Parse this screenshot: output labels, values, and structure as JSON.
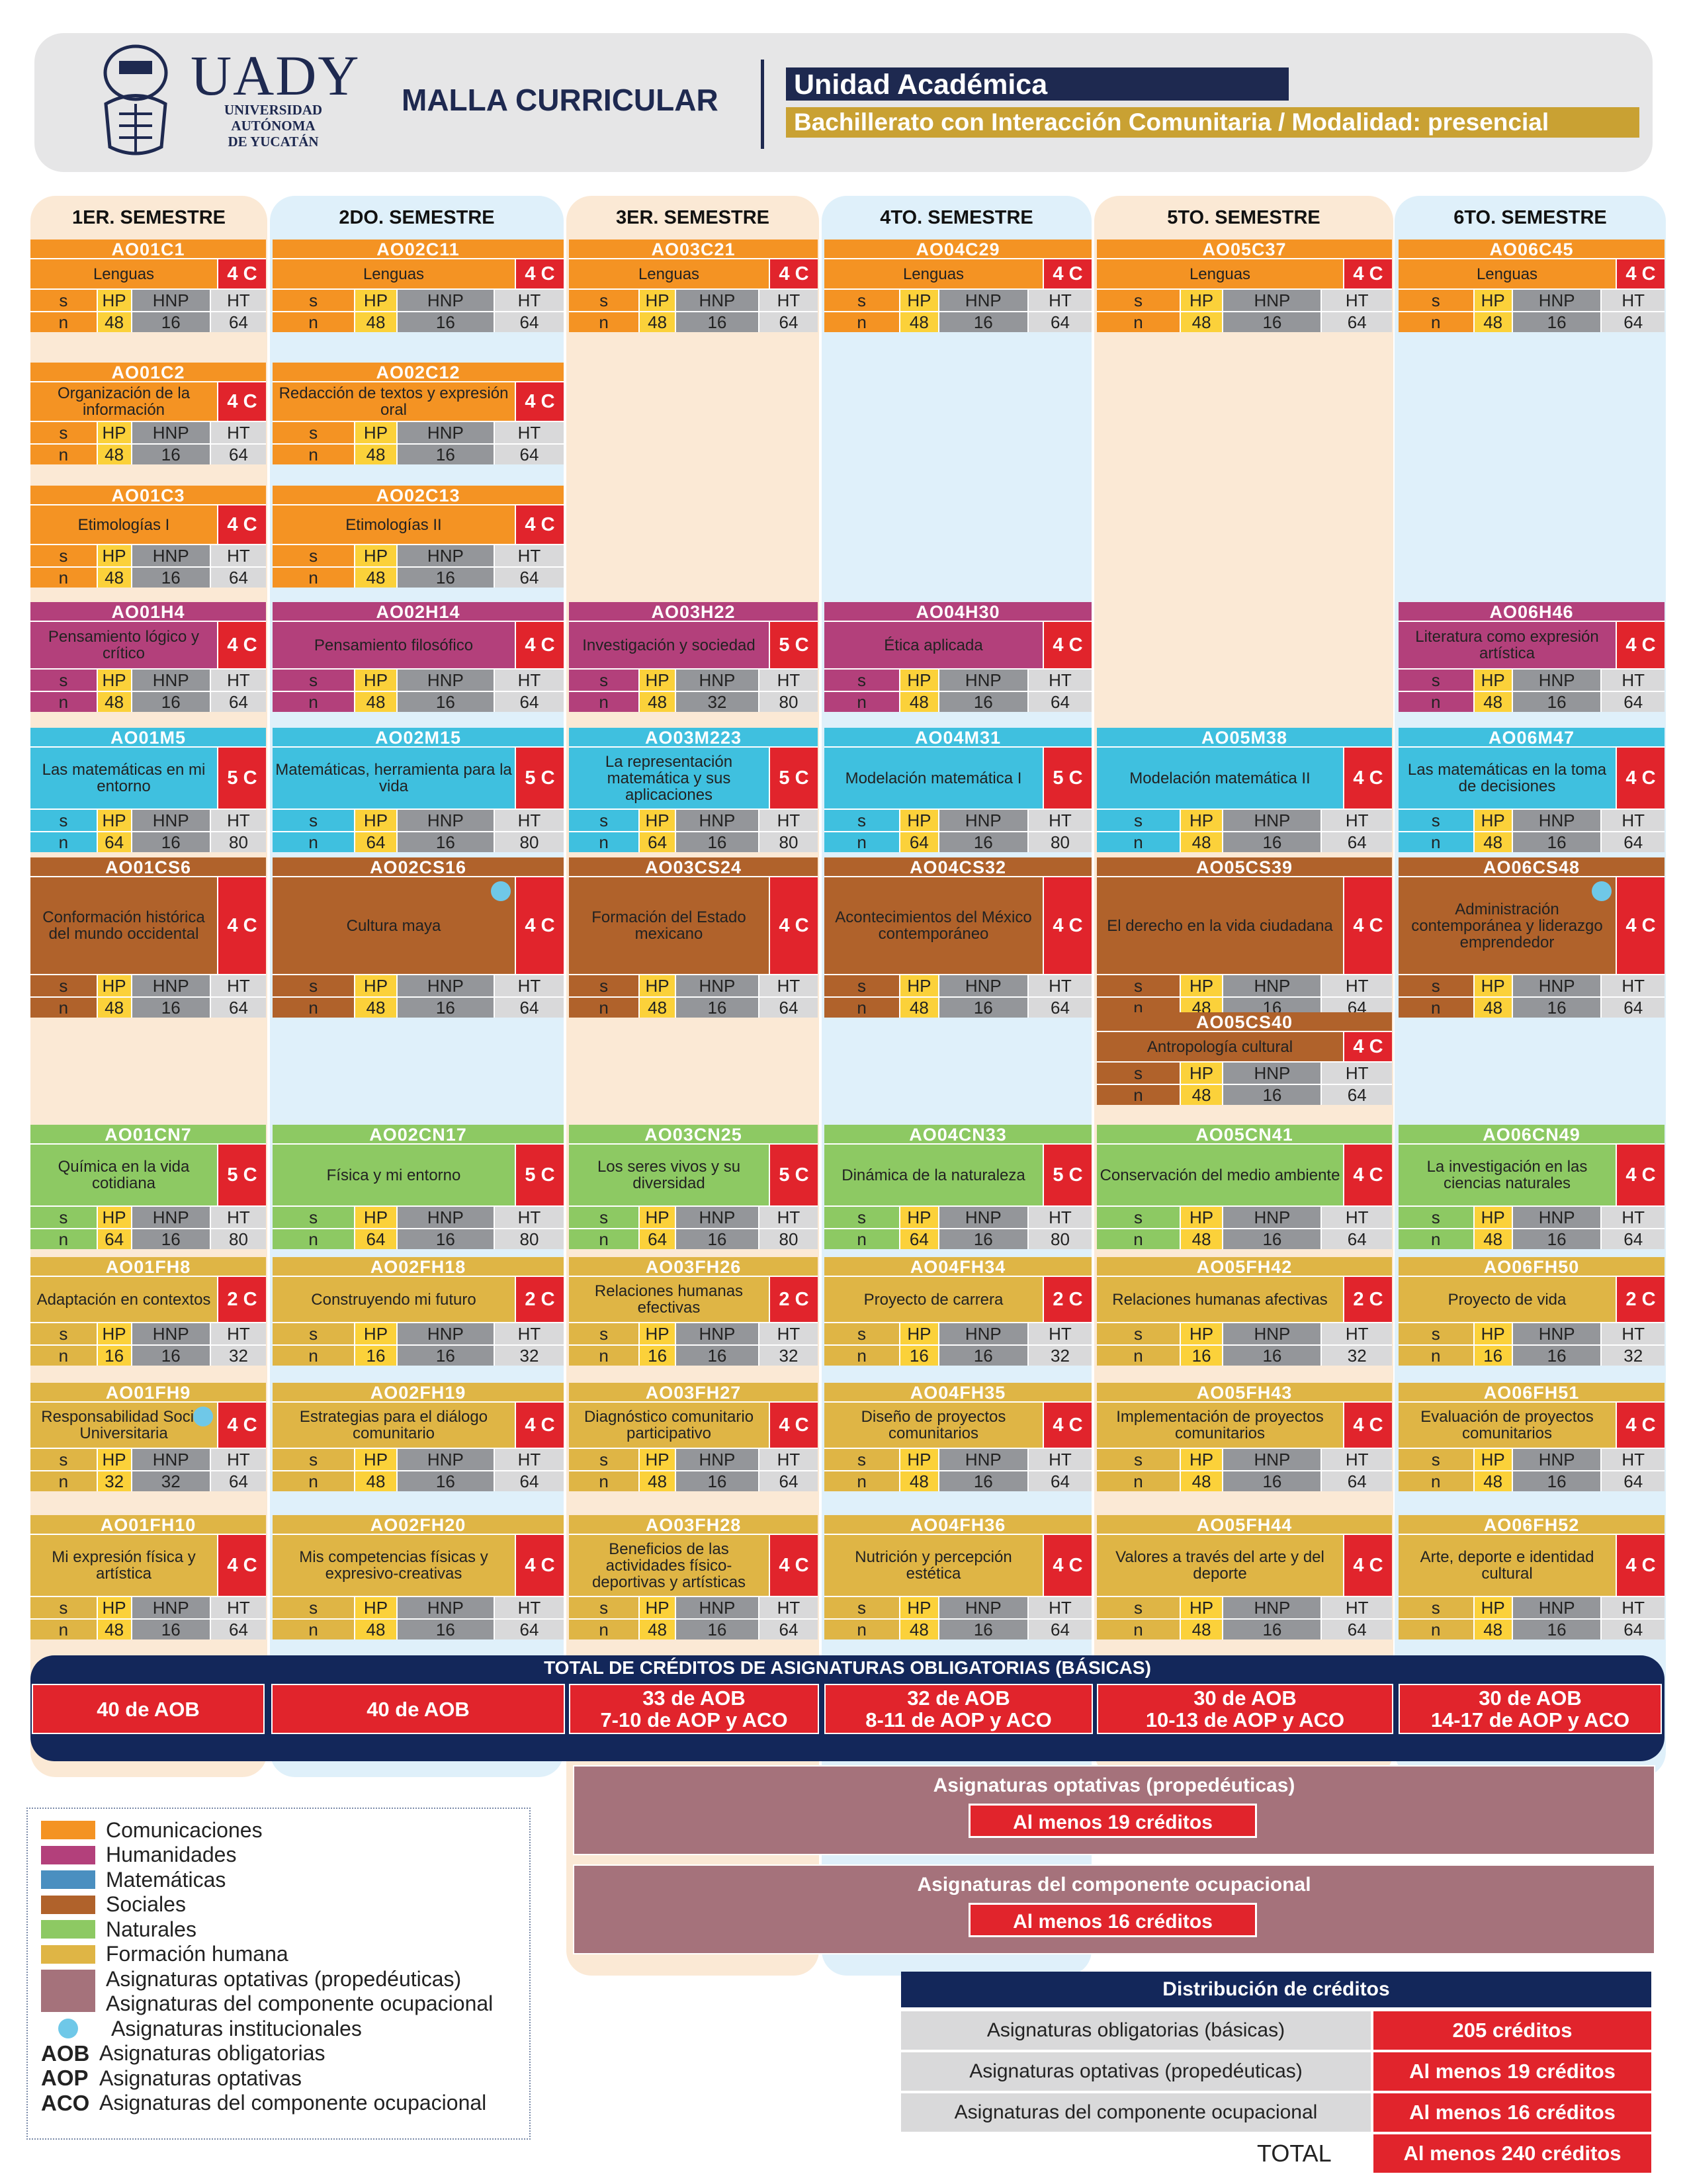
{
  "header": {
    "logo_text": "UADY",
    "logo_sub": [
      "UNIVERSIDAD",
      "AUTÓNOMA",
      "DE YUCATÁN"
    ],
    "title": "MALLA CURRICULAR",
    "unit": "Unidad Académica",
    "program": "Bachillerato con Interacción Comunitaria / Modalidad: presencial"
  },
  "colors": {
    "com": "#f49323",
    "hum": "#b3407b",
    "mat": "#3fc0df",
    "soc": "#b0622b",
    "nat": "#8dc963",
    "fh": "#dfb545",
    "opt": "#a5727b",
    "red": "#e1242c",
    "navy": "#13275a",
    "bg_peach": "#fbe9d5",
    "bg_blue": "#dff0fa"
  },
  "labels": {
    "s": "s",
    "n": "n",
    "hp": "HP",
    "hnp": "HNP",
    "ht": "HT"
  },
  "semesters": [
    "1ER. SEMESTRE",
    "2DO. SEMESTRE",
    "3ER. SEMESTRE",
    "4TO. SEMESTRE",
    "5TO. SEMESTRE",
    "6TO. SEMESTRE"
  ],
  "courses": [
    {
      "sem": 0,
      "row": 0,
      "area": "com",
      "code": "AO01C1",
      "name": "Lenguas",
      "cred": "4 C",
      "hp": "48",
      "hnp": "16",
      "ht": "64"
    },
    {
      "sem": 1,
      "row": 0,
      "area": "com",
      "code": "AO02C11",
      "name": "Lenguas",
      "cred": "4 C",
      "hp": "48",
      "hnp": "16",
      "ht": "64"
    },
    {
      "sem": 2,
      "row": 0,
      "area": "com",
      "code": "AO03C21",
      "name": "Lenguas",
      "cred": "4 C",
      "hp": "48",
      "hnp": "16",
      "ht": "64"
    },
    {
      "sem": 3,
      "row": 0,
      "area": "com",
      "code": "AO04C29",
      "name": "Lenguas",
      "cred": "4 C",
      "hp": "48",
      "hnp": "16",
      "ht": "64"
    },
    {
      "sem": 4,
      "row": 0,
      "area": "com",
      "code": "AO05C37",
      "name": "Lenguas",
      "cred": "4 C",
      "hp": "48",
      "hnp": "16",
      "ht": "64"
    },
    {
      "sem": 5,
      "row": 0,
      "area": "com",
      "code": "AO06C45",
      "name": "Lenguas",
      "cred": "4 C",
      "hp": "48",
      "hnp": "16",
      "ht": "64"
    },
    {
      "sem": 0,
      "row": 1,
      "area": "com",
      "code": "AO01C2",
      "name": "Organización de la información",
      "cred": "4 C",
      "hp": "48",
      "hnp": "16",
      "ht": "64"
    },
    {
      "sem": 1,
      "row": 1,
      "area": "com",
      "code": "AO02C12",
      "name": "Redacción de textos y expresión oral",
      "cred": "4 C",
      "hp": "48",
      "hnp": "16",
      "ht": "64"
    },
    {
      "sem": 0,
      "row": 2,
      "area": "com",
      "code": "AO01C3",
      "name": "Etimologías I",
      "cred": "4 C",
      "hp": "48",
      "hnp": "16",
      "ht": "64"
    },
    {
      "sem": 1,
      "row": 2,
      "area": "com",
      "code": "AO02C13",
      "name": "Etimologías II",
      "cred": "4 C",
      "hp": "48",
      "hnp": "16",
      "ht": "64"
    },
    {
      "sem": 0,
      "row": 3,
      "area": "hum",
      "code": "AO01H4",
      "name": "Pensamiento lógico y crítico",
      "cred": "4 C",
      "hp": "48",
      "hnp": "16",
      "ht": "64"
    },
    {
      "sem": 1,
      "row": 3,
      "area": "hum",
      "code": "AO02H14",
      "name": "Pensamiento filosófico",
      "cred": "4 C",
      "hp": "48",
      "hnp": "16",
      "ht": "64"
    },
    {
      "sem": 2,
      "row": 3,
      "area": "hum",
      "code": "AO03H22",
      "name": "Investigación y sociedad",
      "cred": "5 C",
      "hp": "48",
      "hnp": "32",
      "ht": "80"
    },
    {
      "sem": 3,
      "row": 3,
      "area": "hum",
      "code": "AO04H30",
      "name": "Ética aplicada",
      "cred": "4 C",
      "hp": "48",
      "hnp": "16",
      "ht": "64"
    },
    {
      "sem": 5,
      "row": 3,
      "area": "hum",
      "code": "AO06H46",
      "name": "Literatura como expresión artística",
      "cred": "4 C",
      "hp": "48",
      "hnp": "16",
      "ht": "64"
    },
    {
      "sem": 0,
      "row": 4,
      "area": "mat",
      "code": "AO01M5",
      "name": "Las matemáticas en mi entorno",
      "cred": "5 C",
      "hp": "64",
      "hnp": "16",
      "ht": "80"
    },
    {
      "sem": 1,
      "row": 4,
      "area": "mat",
      "code": "AO02M15",
      "name": "Matemáticas, herramienta para la vida",
      "cred": "5 C",
      "hp": "64",
      "hnp": "16",
      "ht": "80"
    },
    {
      "sem": 2,
      "row": 4,
      "area": "mat",
      "code": "AO03M223",
      "name": "La representación matemática y sus aplicaciones",
      "cred": "5 C",
      "hp": "64",
      "hnp": "16",
      "ht": "80"
    },
    {
      "sem": 3,
      "row": 4,
      "area": "mat",
      "code": "AO04M31",
      "name": "Modelación matemática I",
      "cred": "5 C",
      "hp": "64",
      "hnp": "16",
      "ht": "80"
    },
    {
      "sem": 4,
      "row": 4,
      "area": "mat",
      "code": "AO05M38",
      "name": "Modelación matemática II",
      "cred": "4 C",
      "hp": "48",
      "hnp": "16",
      "ht": "64"
    },
    {
      "sem": 5,
      "row": 4,
      "area": "mat",
      "code": "AO06M47",
      "name": "Las matemáticas en la toma de decisiones",
      "cred": "4 C",
      "hp": "48",
      "hnp": "16",
      "ht": "64"
    },
    {
      "sem": 0,
      "row": 5,
      "area": "soc",
      "code": "AO01CS6",
      "name": "Conformación histórica del mundo occidental",
      "cred": "4 C",
      "hp": "48",
      "hnp": "16",
      "ht": "64"
    },
    {
      "sem": 1,
      "row": 5,
      "area": "soc",
      "code": "AO02CS16",
      "name": "Cultura maya",
      "cred": "4 C",
      "hp": "48",
      "hnp": "16",
      "ht": "64",
      "dot": true
    },
    {
      "sem": 2,
      "row": 5,
      "area": "soc",
      "code": "AO03CS24",
      "name": "Formación del Estado mexicano",
      "cred": "4 C",
      "hp": "48",
      "hnp": "16",
      "ht": "64"
    },
    {
      "sem": 3,
      "row": 5,
      "area": "soc",
      "code": "AO04CS32",
      "name": "Acontecimientos del México contemporáneo",
      "cred": "4 C",
      "hp": "48",
      "hnp": "16",
      "ht": "64"
    },
    {
      "sem": 4,
      "row": 5,
      "area": "soc",
      "code": "AO05CS39",
      "name": "El derecho en la vida ciudadana",
      "cred": "4 C",
      "hp": "48",
      "hnp": "16",
      "ht": "64"
    },
    {
      "sem": 5,
      "row": 5,
      "area": "soc",
      "code": "AO06CS48",
      "name": "Administración contemporánea y liderazgo emprendedor",
      "cred": "4 C",
      "hp": "48",
      "hnp": "16",
      "ht": "64",
      "dot": true
    },
    {
      "sem": 4,
      "row": 6,
      "area": "soc",
      "code": "AO05CS40",
      "name": "Antropología cultural",
      "cred": "4 C",
      "hp": "48",
      "hnp": "16",
      "ht": "64"
    },
    {
      "sem": 0,
      "row": 7,
      "area": "nat",
      "code": "AO01CN7",
      "name": "Química en la vida cotidiana",
      "cred": "5 C",
      "hp": "64",
      "hnp": "16",
      "ht": "80"
    },
    {
      "sem": 1,
      "row": 7,
      "area": "nat",
      "code": "AO02CN17",
      "name": "Física y mi entorno",
      "cred": "5 C",
      "hp": "64",
      "hnp": "16",
      "ht": "80"
    },
    {
      "sem": 2,
      "row": 7,
      "area": "nat",
      "code": "AO03CN25",
      "name": "Los seres vivos y su diversidad",
      "cred": "5 C",
      "hp": "64",
      "hnp": "16",
      "ht": "80"
    },
    {
      "sem": 3,
      "row": 7,
      "area": "nat",
      "code": "AO04CN33",
      "name": "Dinámica de la naturaleza",
      "cred": "5 C",
      "hp": "64",
      "hnp": "16",
      "ht": "80"
    },
    {
      "sem": 4,
      "row": 7,
      "area": "nat",
      "code": "AO05CN41",
      "name": "Conservación del medio ambiente",
      "cred": "4 C",
      "hp": "48",
      "hnp": "16",
      "ht": "64"
    },
    {
      "sem": 5,
      "row": 7,
      "area": "nat",
      "code": "AO06CN49",
      "name": "La investigación en las ciencias naturales",
      "cred": "4 C",
      "hp": "48",
      "hnp": "16",
      "ht": "64"
    },
    {
      "sem": 0,
      "row": 8,
      "area": "fh",
      "code": "AO01FH8",
      "name": "Adaptación en contextos",
      "cred": "2 C",
      "hp": "16",
      "hnp": "16",
      "ht": "32"
    },
    {
      "sem": 1,
      "row": 8,
      "area": "fh",
      "code": "AO02FH18",
      "name": "Construyendo mi futuro",
      "cred": "2 C",
      "hp": "16",
      "hnp": "16",
      "ht": "32"
    },
    {
      "sem": 2,
      "row": 8,
      "area": "fh",
      "code": "AO03FH26",
      "name": "Relaciones humanas efectivas",
      "cred": "2 C",
      "hp": "16",
      "hnp": "16",
      "ht": "32"
    },
    {
      "sem": 3,
      "row": 8,
      "area": "fh",
      "code": "AO04FH34",
      "name": "Proyecto de carrera",
      "cred": "2 C",
      "hp": "16",
      "hnp": "16",
      "ht": "32"
    },
    {
      "sem": 4,
      "row": 8,
      "area": "fh",
      "code": "AO05FH42",
      "name": "Relaciones humanas afectivas",
      "cred": "2 C",
      "hp": "16",
      "hnp": "16",
      "ht": "32"
    },
    {
      "sem": 5,
      "row": 8,
      "area": "fh",
      "code": "AO06FH50",
      "name": "Proyecto de vida",
      "cred": "2 C",
      "hp": "16",
      "hnp": "16",
      "ht": "32"
    },
    {
      "sem": 0,
      "row": 9,
      "area": "fh",
      "code": "AO01FH9",
      "name": "Responsabilidad Social Universitaria",
      "cred": "4 C",
      "hp": "32",
      "hnp": "32",
      "ht": "64",
      "dot": true
    },
    {
      "sem": 1,
      "row": 9,
      "area": "fh",
      "code": "AO02FH19",
      "name": "Estrategias para el diálogo comunitario",
      "cred": "4 C",
      "hp": "48",
      "hnp": "16",
      "ht": "64"
    },
    {
      "sem": 2,
      "row": 9,
      "area": "fh",
      "code": "AO03FH27",
      "name": "Diagnóstico comunitario participativo",
      "cred": "4 C",
      "hp": "48",
      "hnp": "16",
      "ht": "64"
    },
    {
      "sem": 3,
      "row": 9,
      "area": "fh",
      "code": "AO04FH35",
      "name": "Diseño de proyectos comunitarios",
      "cred": "4 C",
      "hp": "48",
      "hnp": "16",
      "ht": "64"
    },
    {
      "sem": 4,
      "row": 9,
      "area": "fh",
      "code": "AO05FH43",
      "name": "Implementación de proyectos comunitarios",
      "cred": "4 C",
      "hp": "48",
      "hnp": "16",
      "ht": "64"
    },
    {
      "sem": 5,
      "row": 9,
      "area": "fh",
      "code": "AO06FH51",
      "name": "Evaluación de proyectos comunitarios",
      "cred": "4 C",
      "hp": "48",
      "hnp": "16",
      "ht": "64"
    },
    {
      "sem": 0,
      "row": 10,
      "area": "fh",
      "code": "AO01FH10",
      "name": "Mi expresión física y artística",
      "cred": "4 C",
      "hp": "48",
      "hnp": "16",
      "ht": "64"
    },
    {
      "sem": 1,
      "row": 10,
      "area": "fh",
      "code": "AO02FH20",
      "name": "Mis competencias físicas y expresivo-creativas",
      "cred": "4 C",
      "hp": "48",
      "hnp": "16",
      "ht": "64"
    },
    {
      "sem": 2,
      "row": 10,
      "area": "fh",
      "code": "AO03FH28",
      "name": "Beneficios de las actividades físico-deportivas y artísticas",
      "cred": "4 C",
      "hp": "48",
      "hnp": "16",
      "ht": "64"
    },
    {
      "sem": 3,
      "row": 10,
      "area": "fh",
      "code": "AO04FH36",
      "name": "Nutrición y percepción estética",
      "cred": "4 C",
      "hp": "48",
      "hnp": "16",
      "ht": "64"
    },
    {
      "sem": 4,
      "row": 10,
      "area": "fh",
      "code": "AO05FH44",
      "name": "Valores a través del arte y del deporte",
      "cred": "4 C",
      "hp": "48",
      "hnp": "16",
      "ht": "64"
    },
    {
      "sem": 5,
      "row": 10,
      "area": "fh",
      "code": "AO06FH52",
      "name": "Arte, deporte e identidad cultural",
      "cred": "4 C",
      "hp": "48",
      "hnp": "16",
      "ht": "64"
    }
  ],
  "totals": {
    "title": "TOTAL DE CRÉDITOS DE ASIGNATURAS OBLIGATORIAS (BÁSICAS)",
    "boxes": [
      [
        "40 de AOB"
      ],
      [
        "40 de AOB"
      ],
      [
        "33 de AOB",
        "7-10 de AOP y ACO"
      ],
      [
        "32 de AOB",
        "8-11 de AOP y ACO"
      ],
      [
        "30 de AOB",
        "10-13 de AOP y ACO"
      ],
      [
        "30 de AOB",
        "14-17 de AOP y ACO"
      ]
    ]
  },
  "optativas": {
    "title": "Asignaturas optativas (propedéuticas)",
    "value": "Al menos 19 créditos"
  },
  "ocupacional": {
    "title": "Asignaturas del componente ocupacional",
    "value": "Al menos 16 créditos"
  },
  "legend": [
    {
      "color": "#f49323",
      "label": "Comunicaciones"
    },
    {
      "color": "#b3407b",
      "label": "Humanidades"
    },
    {
      "color": "#4a8fc0",
      "label": "Matemáticas"
    },
    {
      "color": "#b0622b",
      "label": "Sociales"
    },
    {
      "color": "#8dc963",
      "label": "Naturales"
    },
    {
      "color": "#dfb545",
      "label": "Formación humana"
    },
    {
      "color": "#a5727b",
      "label": "Asignaturas optativas (propedéuticas)"
    },
    {
      "color": "",
      "label": "Asignaturas del componente ocupacional"
    },
    {
      "dot": true,
      "label": "Asignaturas institucionales"
    },
    {
      "abbr": "AOB",
      "label": "Asignaturas obligatorias"
    },
    {
      "abbr": "AOP",
      "label": "Asignaturas optativas"
    },
    {
      "abbr": "ACO",
      "label": "Asignaturas del componente ocupacional"
    }
  ],
  "distribution": {
    "title": "Distribución de créditos",
    "rows": [
      {
        "label": "Asignaturas obligatorias (básicas)",
        "value": "205 créditos"
      },
      {
        "label": "Asignaturas optativas (propedéuticas)",
        "value": "Al menos 19 créditos"
      },
      {
        "label": "Asignaturas del componente ocupacional",
        "value": "Al menos 16 créditos"
      }
    ],
    "total_label": "TOTAL",
    "total_value": "Al menos 240 créditos"
  }
}
